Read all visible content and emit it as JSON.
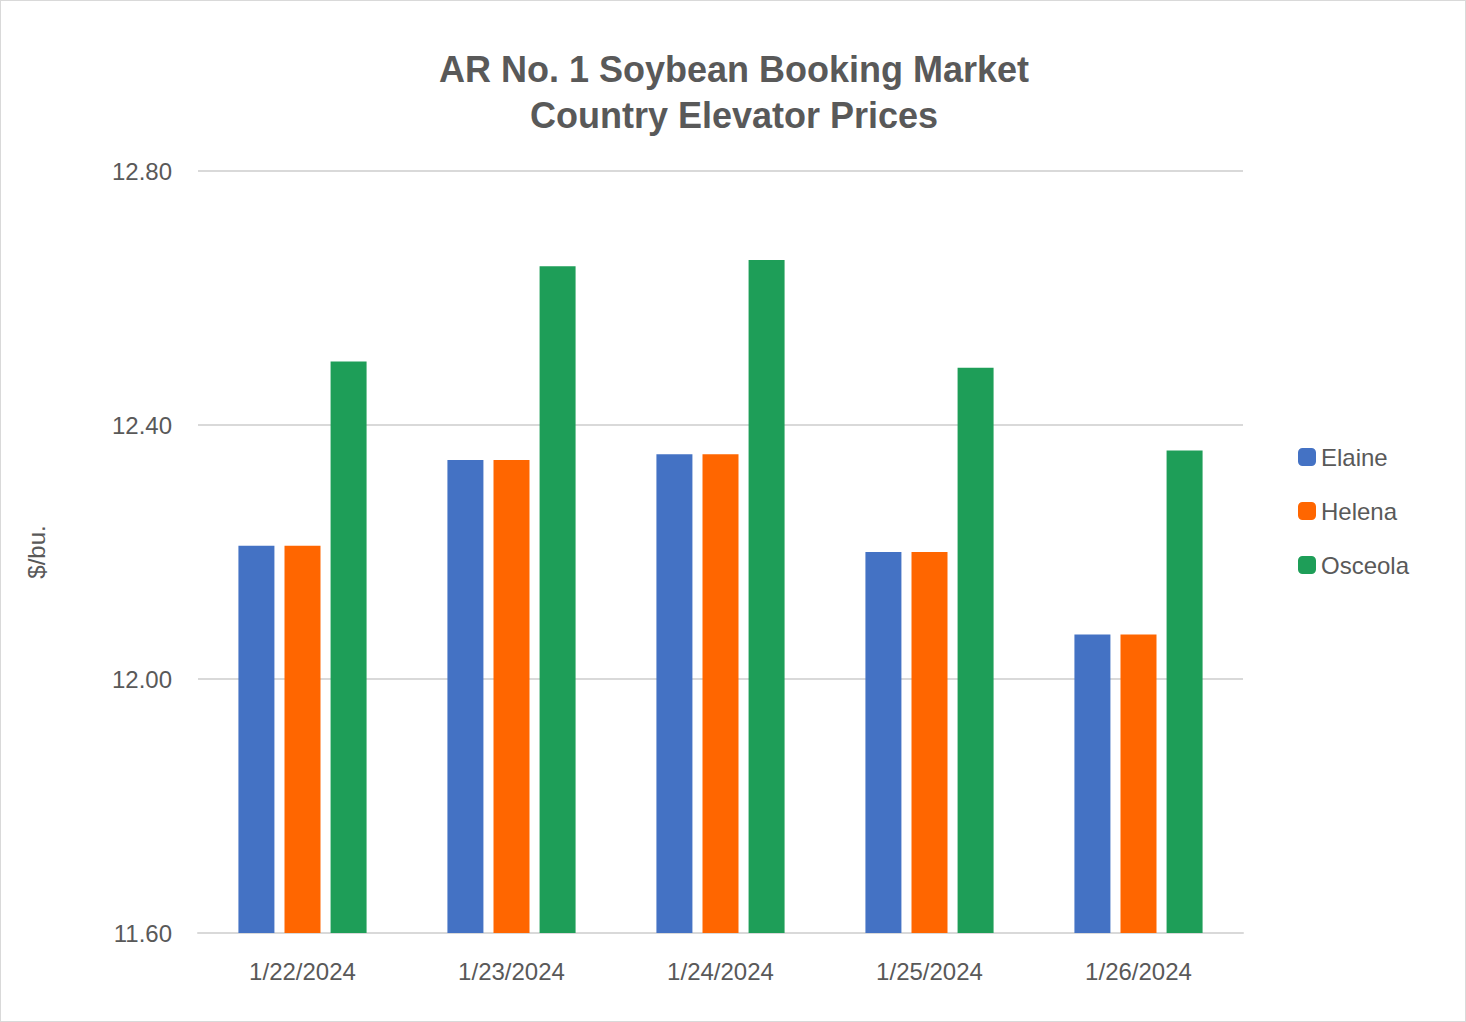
{
  "chart_data": {
    "type": "bar",
    "title": "AR No. 1 Soybean Booking Market\nCountry Elevator Prices",
    "y_label": "$/bu.",
    "categories": [
      "1/22/2024",
      "1/23/2024",
      "1/24/2024",
      "1/25/2024",
      "1/26/2024"
    ],
    "series": [
      {
        "name": "Elaine",
        "color": "#4472c4",
        "values": [
          12.21,
          12.345,
          12.354,
          12.2,
          12.07
        ]
      },
      {
        "name": "Helena",
        "color": "#ff6600",
        "values": [
          12.21,
          12.345,
          12.354,
          12.2,
          12.07
        ]
      },
      {
        "name": "Osceola",
        "color": "#1e9e58",
        "values": [
          12.5,
          12.65,
          12.66,
          12.49,
          12.36
        ]
      }
    ],
    "ylim": [
      11.6,
      12.8
    ],
    "yticks": [
      {
        "value": 11.6,
        "label": "11.60"
      },
      {
        "value": 12.0,
        "label": "12.00"
      },
      {
        "value": 12.4,
        "label": "12.40"
      },
      {
        "value": 12.8,
        "label": "12.80"
      }
    ],
    "grid": true,
    "legend": "right"
  }
}
